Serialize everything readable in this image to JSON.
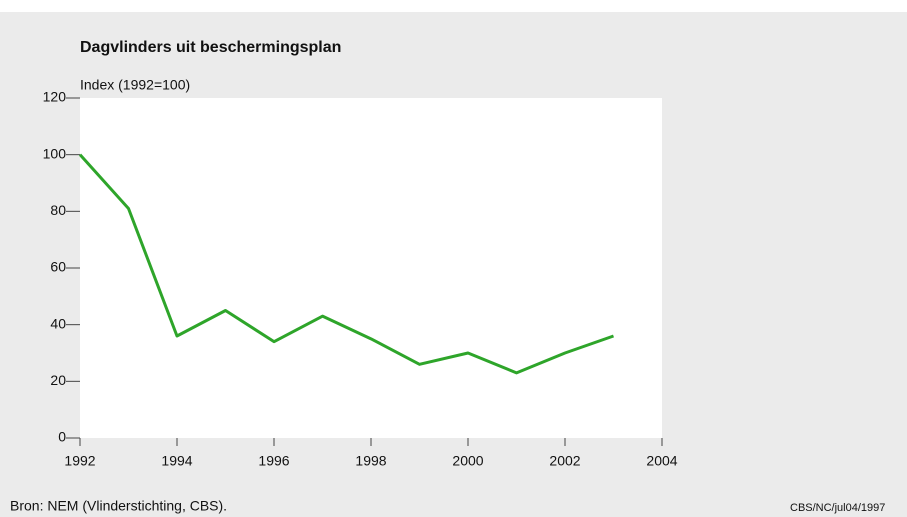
{
  "chart_data": {
    "type": "line",
    "title": "Dagvlinders uit beschermingsplan",
    "y_label": "Index (1992=100)",
    "source": "Bron: NEM (Vlinderstichting, CBS).",
    "code": "CBS/NC/jul04/1997",
    "x": [
      1992,
      1993,
      1994,
      1995,
      1996,
      1997,
      1998,
      1999,
      2000,
      2001,
      2002,
      2003
    ],
    "series": [
      {
        "name": "Dagvlinders",
        "color": "#2ea52a",
        "values": [
          100,
          81,
          36,
          45,
          34,
          43,
          35,
          26,
          30,
          23,
          30,
          36
        ]
      }
    ],
    "xlim": [
      1992,
      2004
    ],
    "xticks": [
      1992,
      1994,
      1996,
      1998,
      2000,
      2002,
      2004
    ],
    "ylim": [
      0,
      120
    ],
    "yticks": [
      0,
      20,
      40,
      60,
      80,
      100,
      120
    ],
    "grid": false
  }
}
